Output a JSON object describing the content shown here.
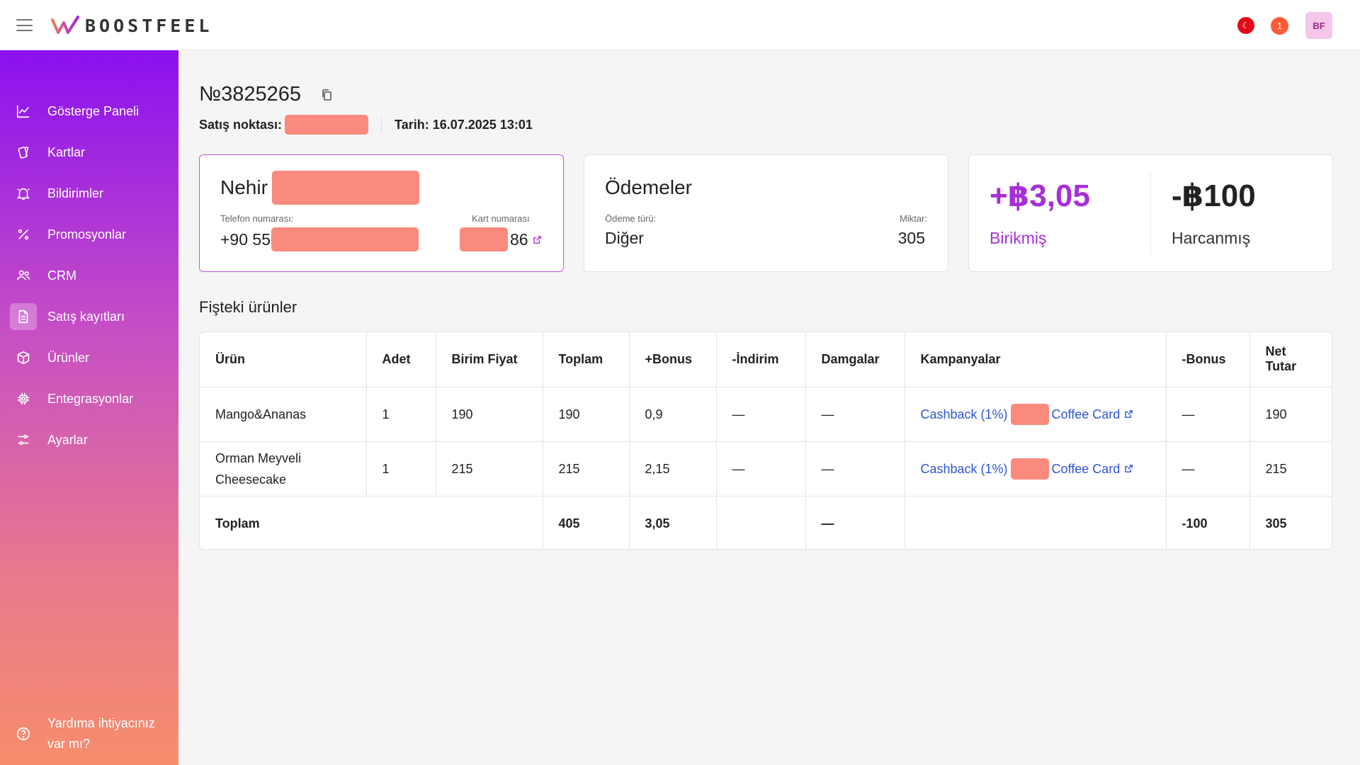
{
  "header": {
    "logo_text": "BOOSTFEEL",
    "notification_count": "1",
    "avatar_initials": "BF",
    "language_flag": "☾"
  },
  "sidebar": {
    "items": [
      {
        "label": "Gösterge Paneli",
        "icon": "chart-line-icon"
      },
      {
        "label": "Kartlar",
        "icon": "cards-icon"
      },
      {
        "label": "Bildirimler",
        "icon": "bell-icon"
      },
      {
        "label": "Promosyonlar",
        "icon": "percent-icon"
      },
      {
        "label": "CRM",
        "icon": "users-icon"
      },
      {
        "label": "Satış kayıtları",
        "icon": "document-icon",
        "active": true
      },
      {
        "label": "Ürünler",
        "icon": "box-icon"
      },
      {
        "label": "Entegrasyonlar",
        "icon": "chip-icon"
      },
      {
        "label": "Ayarlar",
        "icon": "sliders-icon"
      }
    ],
    "help_line1": "Yardıma ihtiyacınız",
    "help_line2": "var mı?"
  },
  "receipt": {
    "number": "№3825265",
    "point_label": "Satış noktası:",
    "date_text": "Tarih: 16.07.2025 13:01"
  },
  "customer_card": {
    "name": "Nehir",
    "phone_label": "Telefon numarası:",
    "phone_prefix": "+90 55",
    "card_label": "Kart numarası",
    "card_suffix": "86"
  },
  "payments_card": {
    "title": "Ödemeler",
    "type_label": "Ödeme türü:",
    "type_value": "Diğer",
    "amount_label": "Miktar:",
    "amount_value": "305"
  },
  "points_card": {
    "earned_value": "+฿3,05",
    "earned_label": "Birikmiş",
    "spent_value": "-฿100",
    "spent_label": "Harcanmış",
    "earned_color": "#a72fd8"
  },
  "products": {
    "title": "Fişteki ürünler",
    "columns": [
      "Ürün",
      "Adet",
      "Birim Fiyat",
      "Toplam",
      "+Bonus",
      "-İndirim",
      "Damgalar",
      "Kampanyalar",
      "-Bonus",
      "Net Tutar"
    ],
    "rows": [
      {
        "product": "Mango&Ananas",
        "qty": "1",
        "unit_price": "190",
        "total": "190",
        "bonus_plus": "0,9",
        "discount": "—",
        "stamps": "—",
        "campaign_a": "Cashback (1%)",
        "campaign_b": "Coffee Card",
        "bonus_minus": "—",
        "net": "190"
      },
      {
        "product": "Orman Meyveli Cheesecake",
        "qty": "1",
        "unit_price": "215",
        "total": "215",
        "bonus_plus": "2,15",
        "discount": "—",
        "stamps": "—",
        "campaign_a": "Cashback (1%)",
        "campaign_b": "Coffee Card",
        "bonus_minus": "—",
        "net": "215"
      }
    ],
    "totals": {
      "label": "Toplam",
      "total": "405",
      "bonus_plus": "3,05",
      "stamps": "—",
      "bonus_minus": "-100",
      "net": "305"
    }
  }
}
